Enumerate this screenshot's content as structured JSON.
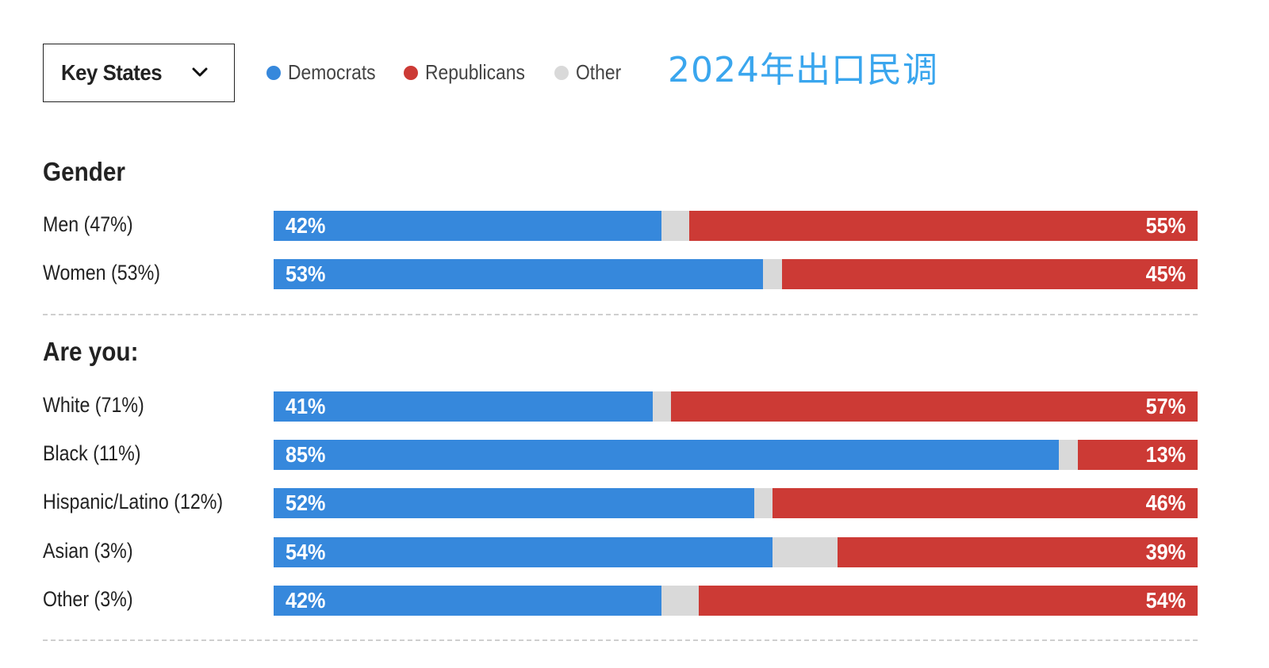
{
  "header": {
    "dropdown_label": "Key States",
    "title": "2024年出口民调"
  },
  "legend": [
    {
      "label": "Democrats",
      "color": "#3688dc"
    },
    {
      "label": "Republicans",
      "color": "#cc3a35"
    },
    {
      "label": "Other",
      "color": "#d9d9d9"
    }
  ],
  "colors": {
    "democrats": "#3688dc",
    "republicans": "#cc3a35",
    "other": "#d9d9d9"
  },
  "chart_data": {
    "type": "bar",
    "orientation": "horizontal",
    "stacked": true,
    "title": "2024年出口民调",
    "legend_position": "top",
    "series": [
      {
        "name": "Democrats"
      },
      {
        "name": "Republicans"
      },
      {
        "name": "Other"
      }
    ],
    "groups": [
      {
        "title": "Gender",
        "rows": [
          {
            "label": "Men (47%)",
            "dem": 42,
            "rep": 55,
            "dem_label": "42%",
            "rep_label": "55%"
          },
          {
            "label": "Women (53%)",
            "dem": 53,
            "rep": 45,
            "dem_label": "53%",
            "rep_label": "45%"
          }
        ]
      },
      {
        "title": "Are you:",
        "rows": [
          {
            "label": "White (71%)",
            "dem": 41,
            "rep": 57,
            "dem_label": "41%",
            "rep_label": "57%"
          },
          {
            "label": "Black (11%)",
            "dem": 85,
            "rep": 13,
            "dem_label": "85%",
            "rep_label": "13%"
          },
          {
            "label": "Hispanic/Latino (12%)",
            "dem": 52,
            "rep": 46,
            "dem_label": "52%",
            "rep_label": "46%"
          },
          {
            "label": "Asian (3%)",
            "dem": 54,
            "rep": 39,
            "dem_label": "54%",
            "rep_label": "39%"
          },
          {
            "label": "Other (3%)",
            "dem": 42,
            "rep": 54,
            "dem_label": "42%",
            "rep_label": "54%"
          }
        ]
      }
    ]
  }
}
